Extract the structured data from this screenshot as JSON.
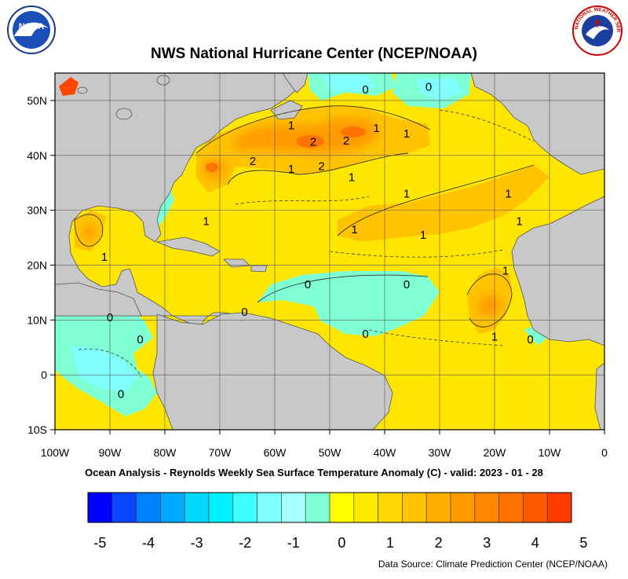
{
  "title": "NWS National Hurricane Center (NCEP/NOAA)",
  "subtitle": "Ocean Analysis - Reynolds Weekly Sea Surface Temperature Anomaly (C) - valid: 2023 - 01 - 28",
  "source": "Data Source: Climate Prediction Center (NCEP/NOAA)",
  "logos": {
    "left": {
      "icon": "noaa-logo",
      "text": "NOAA"
    },
    "right": {
      "icon": "nws-logo",
      "text": "NATIONAL WEATHER SERVICE"
    }
  },
  "map": {
    "lon_range": [
      -100,
      0
    ],
    "lat_range": [
      -10,
      55
    ],
    "lon_ticks": [
      {
        "value": -100,
        "label": "100W"
      },
      {
        "value": -90,
        "label": "90W"
      },
      {
        "value": -80,
        "label": "80W"
      },
      {
        "value": -70,
        "label": "70W"
      },
      {
        "value": -60,
        "label": "60W"
      },
      {
        "value": -50,
        "label": "50W"
      },
      {
        "value": -40,
        "label": "40W"
      },
      {
        "value": -30,
        "label": "30W"
      },
      {
        "value": -20,
        "label": "20W"
      },
      {
        "value": -10,
        "label": "10W"
      },
      {
        "value": 0,
        "label": "0"
      }
    ],
    "lat_ticks": [
      {
        "value": 50,
        "label": "50N"
      },
      {
        "value": 40,
        "label": "40N"
      },
      {
        "value": 30,
        "label": "30N"
      },
      {
        "value": 20,
        "label": "20N"
      },
      {
        "value": 10,
        "label": "10N"
      },
      {
        "value": 0,
        "label": "0"
      },
      {
        "value": -10,
        "label": "10S"
      }
    ],
    "grid": true,
    "colors": {
      "land": "#c8c8c8",
      "ocean_background": "#ffe600",
      "contour": "#333333"
    },
    "contour_labels": [
      {
        "text": "0",
        "lon": -43.5,
        "lat": 52
      },
      {
        "text": "0",
        "lon": -32,
        "lat": 52.5
      },
      {
        "text": "1",
        "lon": -57,
        "lat": 45.5
      },
      {
        "text": "2",
        "lon": -53,
        "lat": 42.5
      },
      {
        "text": "2",
        "lon": -47,
        "lat": 42.7
      },
      {
        "text": "1",
        "lon": -41.5,
        "lat": 45
      },
      {
        "text": "1",
        "lon": -36,
        "lat": 44
      },
      {
        "text": "2",
        "lon": -64,
        "lat": 39
      },
      {
        "text": "2",
        "lon": -51.5,
        "lat": 38
      },
      {
        "text": "1",
        "lon": -57,
        "lat": 37.5
      },
      {
        "text": "1",
        "lon": -46,
        "lat": 36
      },
      {
        "text": "1",
        "lon": -36,
        "lat": 33
      },
      {
        "text": "1",
        "lon": -17.5,
        "lat": 33
      },
      {
        "text": "1",
        "lon": -72.5,
        "lat": 28
      },
      {
        "text": "1",
        "lon": -15.5,
        "lat": 28
      },
      {
        "text": "1",
        "lon": -45.5,
        "lat": 26.5
      },
      {
        "text": "1",
        "lon": -33,
        "lat": 25.5
      },
      {
        "text": "1",
        "lon": -91,
        "lat": 21.5
      },
      {
        "text": "1",
        "lon": -18,
        "lat": 19
      },
      {
        "text": "0",
        "lon": -36,
        "lat": 16.5
      },
      {
        "text": "0",
        "lon": -54,
        "lat": 16.5
      },
      {
        "text": "0",
        "lon": -65.5,
        "lat": 11.5
      },
      {
        "text": "0",
        "lon": -90,
        "lat": 10.5
      },
      {
        "text": "0",
        "lon": -84.5,
        "lat": 6.5
      },
      {
        "text": "0",
        "lon": -43.5,
        "lat": 7.5
      },
      {
        "text": "1",
        "lon": -20,
        "lat": 7
      },
      {
        "text": "0",
        "lon": -13.5,
        "lat": 6.5
      },
      {
        "text": "0",
        "lon": -88,
        "lat": -3.5
      }
    ]
  },
  "legend": {
    "title": "",
    "colors": [
      "#0000ff",
      "#0a46ff",
      "#0082ff",
      "#00aaff",
      "#00d7ff",
      "#00f0ff",
      "#40ffff",
      "#80ffff",
      "#a6ffff",
      "#7fffd4",
      "#ffff00",
      "#ffeb00",
      "#ffd700",
      "#ffc300",
      "#ffaf00",
      "#ff9b00",
      "#ff8700",
      "#ff7300",
      "#ff5a00",
      "#ff3c00"
    ],
    "labels": [
      {
        "value": -5,
        "text": "-5"
      },
      {
        "value": -4,
        "text": "-4"
      },
      {
        "value": -3,
        "text": "-3"
      },
      {
        "value": -2,
        "text": "-2"
      },
      {
        "value": -1,
        "text": "-1"
      },
      {
        "value": 0,
        "text": "0"
      },
      {
        "value": 1,
        "text": "1"
      },
      {
        "value": 2,
        "text": "2"
      },
      {
        "value": 3,
        "text": "3"
      },
      {
        "value": 4,
        "text": "4"
      },
      {
        "value": 5,
        "text": "5"
      }
    ]
  }
}
